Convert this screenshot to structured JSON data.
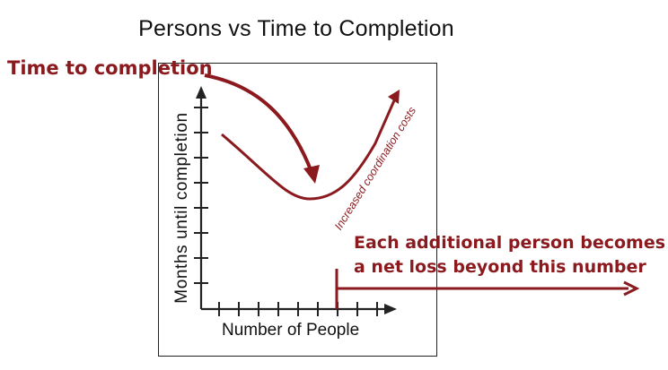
{
  "title": "Persons vs Time to Completion",
  "axes": {
    "y_label": "Months until completion",
    "x_label": "Number of People"
  },
  "annotations": {
    "time_to_completion": "Time to completion",
    "coordination_costs": "Increased coordination costs",
    "net_loss_line1": "Each additional person becomes",
    "net_loss_line2": "a net loss beyond this number"
  },
  "colors": {
    "accent_red": "#8b1a1f",
    "ink": "#222222"
  }
}
